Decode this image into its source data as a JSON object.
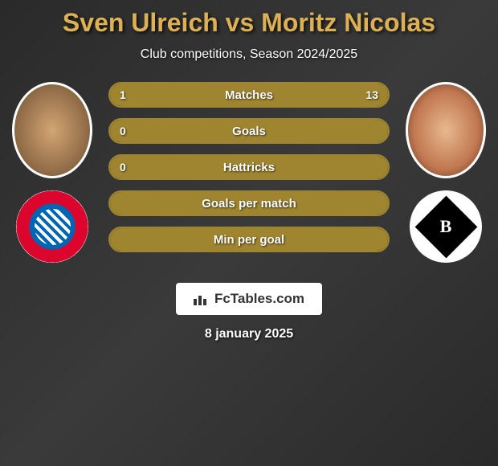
{
  "title": "Sven Ulreich vs Moritz Nicolas",
  "subtitle": "Club competitions, Season 2024/2025",
  "player_left": {
    "name": "Sven Ulreich",
    "club": "FC Bayern München"
  },
  "player_right": {
    "name": "Moritz Nicolas",
    "club": "Borussia Mönchengladbach"
  },
  "stats": [
    {
      "label": "Matches",
      "left_value": "1",
      "right_value": "13",
      "left_pct": 7,
      "right_pct": 93,
      "show_left": true,
      "show_right": true
    },
    {
      "label": "Goals",
      "left_value": "0",
      "right_value": "",
      "left_pct": 0,
      "right_pct": 100,
      "show_left": true,
      "show_right": false
    },
    {
      "label": "Hattricks",
      "left_value": "0",
      "right_value": "",
      "left_pct": 0,
      "right_pct": 100,
      "show_left": true,
      "show_right": false
    },
    {
      "label": "Goals per match",
      "left_value": "",
      "right_value": "",
      "left_pct": 0,
      "right_pct": 100,
      "show_left": false,
      "show_right": false
    },
    {
      "label": "Min per goal",
      "left_value": "",
      "right_value": "",
      "left_pct": 0,
      "right_pct": 100,
      "show_left": false,
      "show_right": false
    }
  ],
  "logo_text": "FcTables.com",
  "date": "8 january 2025",
  "colors": {
    "title_color": "#ddb153",
    "bar_color": "#a08530",
    "bar_border": "#a08530",
    "background": "#2a2a2a",
    "text": "#ffffff"
  }
}
